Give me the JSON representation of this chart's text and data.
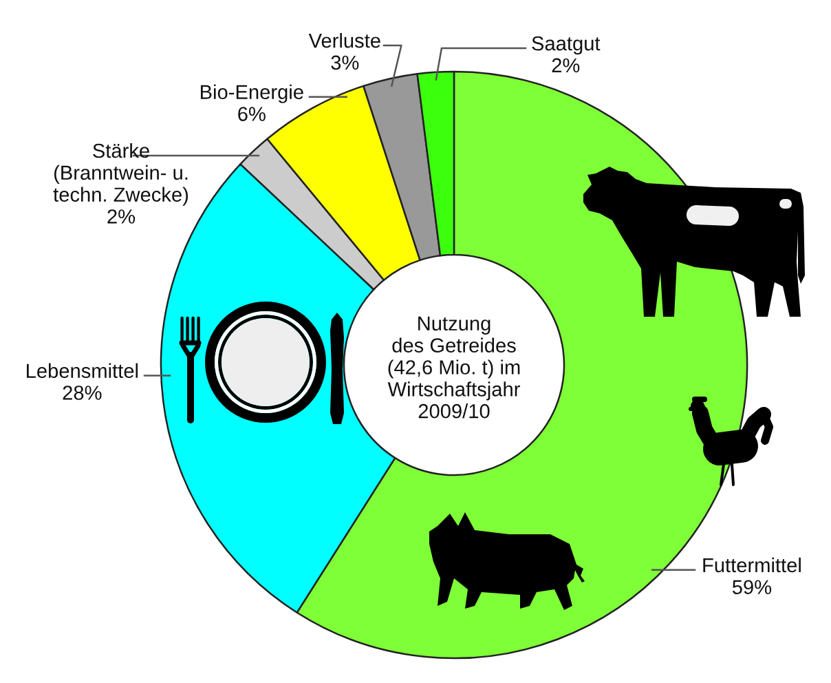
{
  "chart_data": {
    "type": "donut",
    "title": "Nutzung\ndes Getreides\n(42,6 Mio. t) im\nWirtschaftsjahr\n2009/10",
    "categories": [
      "Futtermittel",
      "Lebensmittel",
      "Stärke\n(Branntwein- u.\ntechn. Zwecke)",
      "Bio-Energie",
      "Verluste",
      "Saatgut"
    ],
    "values": [
      59,
      28,
      2,
      6,
      3,
      2
    ],
    "colors": [
      "#7fff37",
      "#00ffff",
      "#cccccc",
      "#ffff00",
      "#999999",
      "#3cff0e"
    ],
    "value_labels": [
      "59%",
      "28%",
      "2%",
      "6%",
      "3%",
      "2%"
    ]
  }
}
